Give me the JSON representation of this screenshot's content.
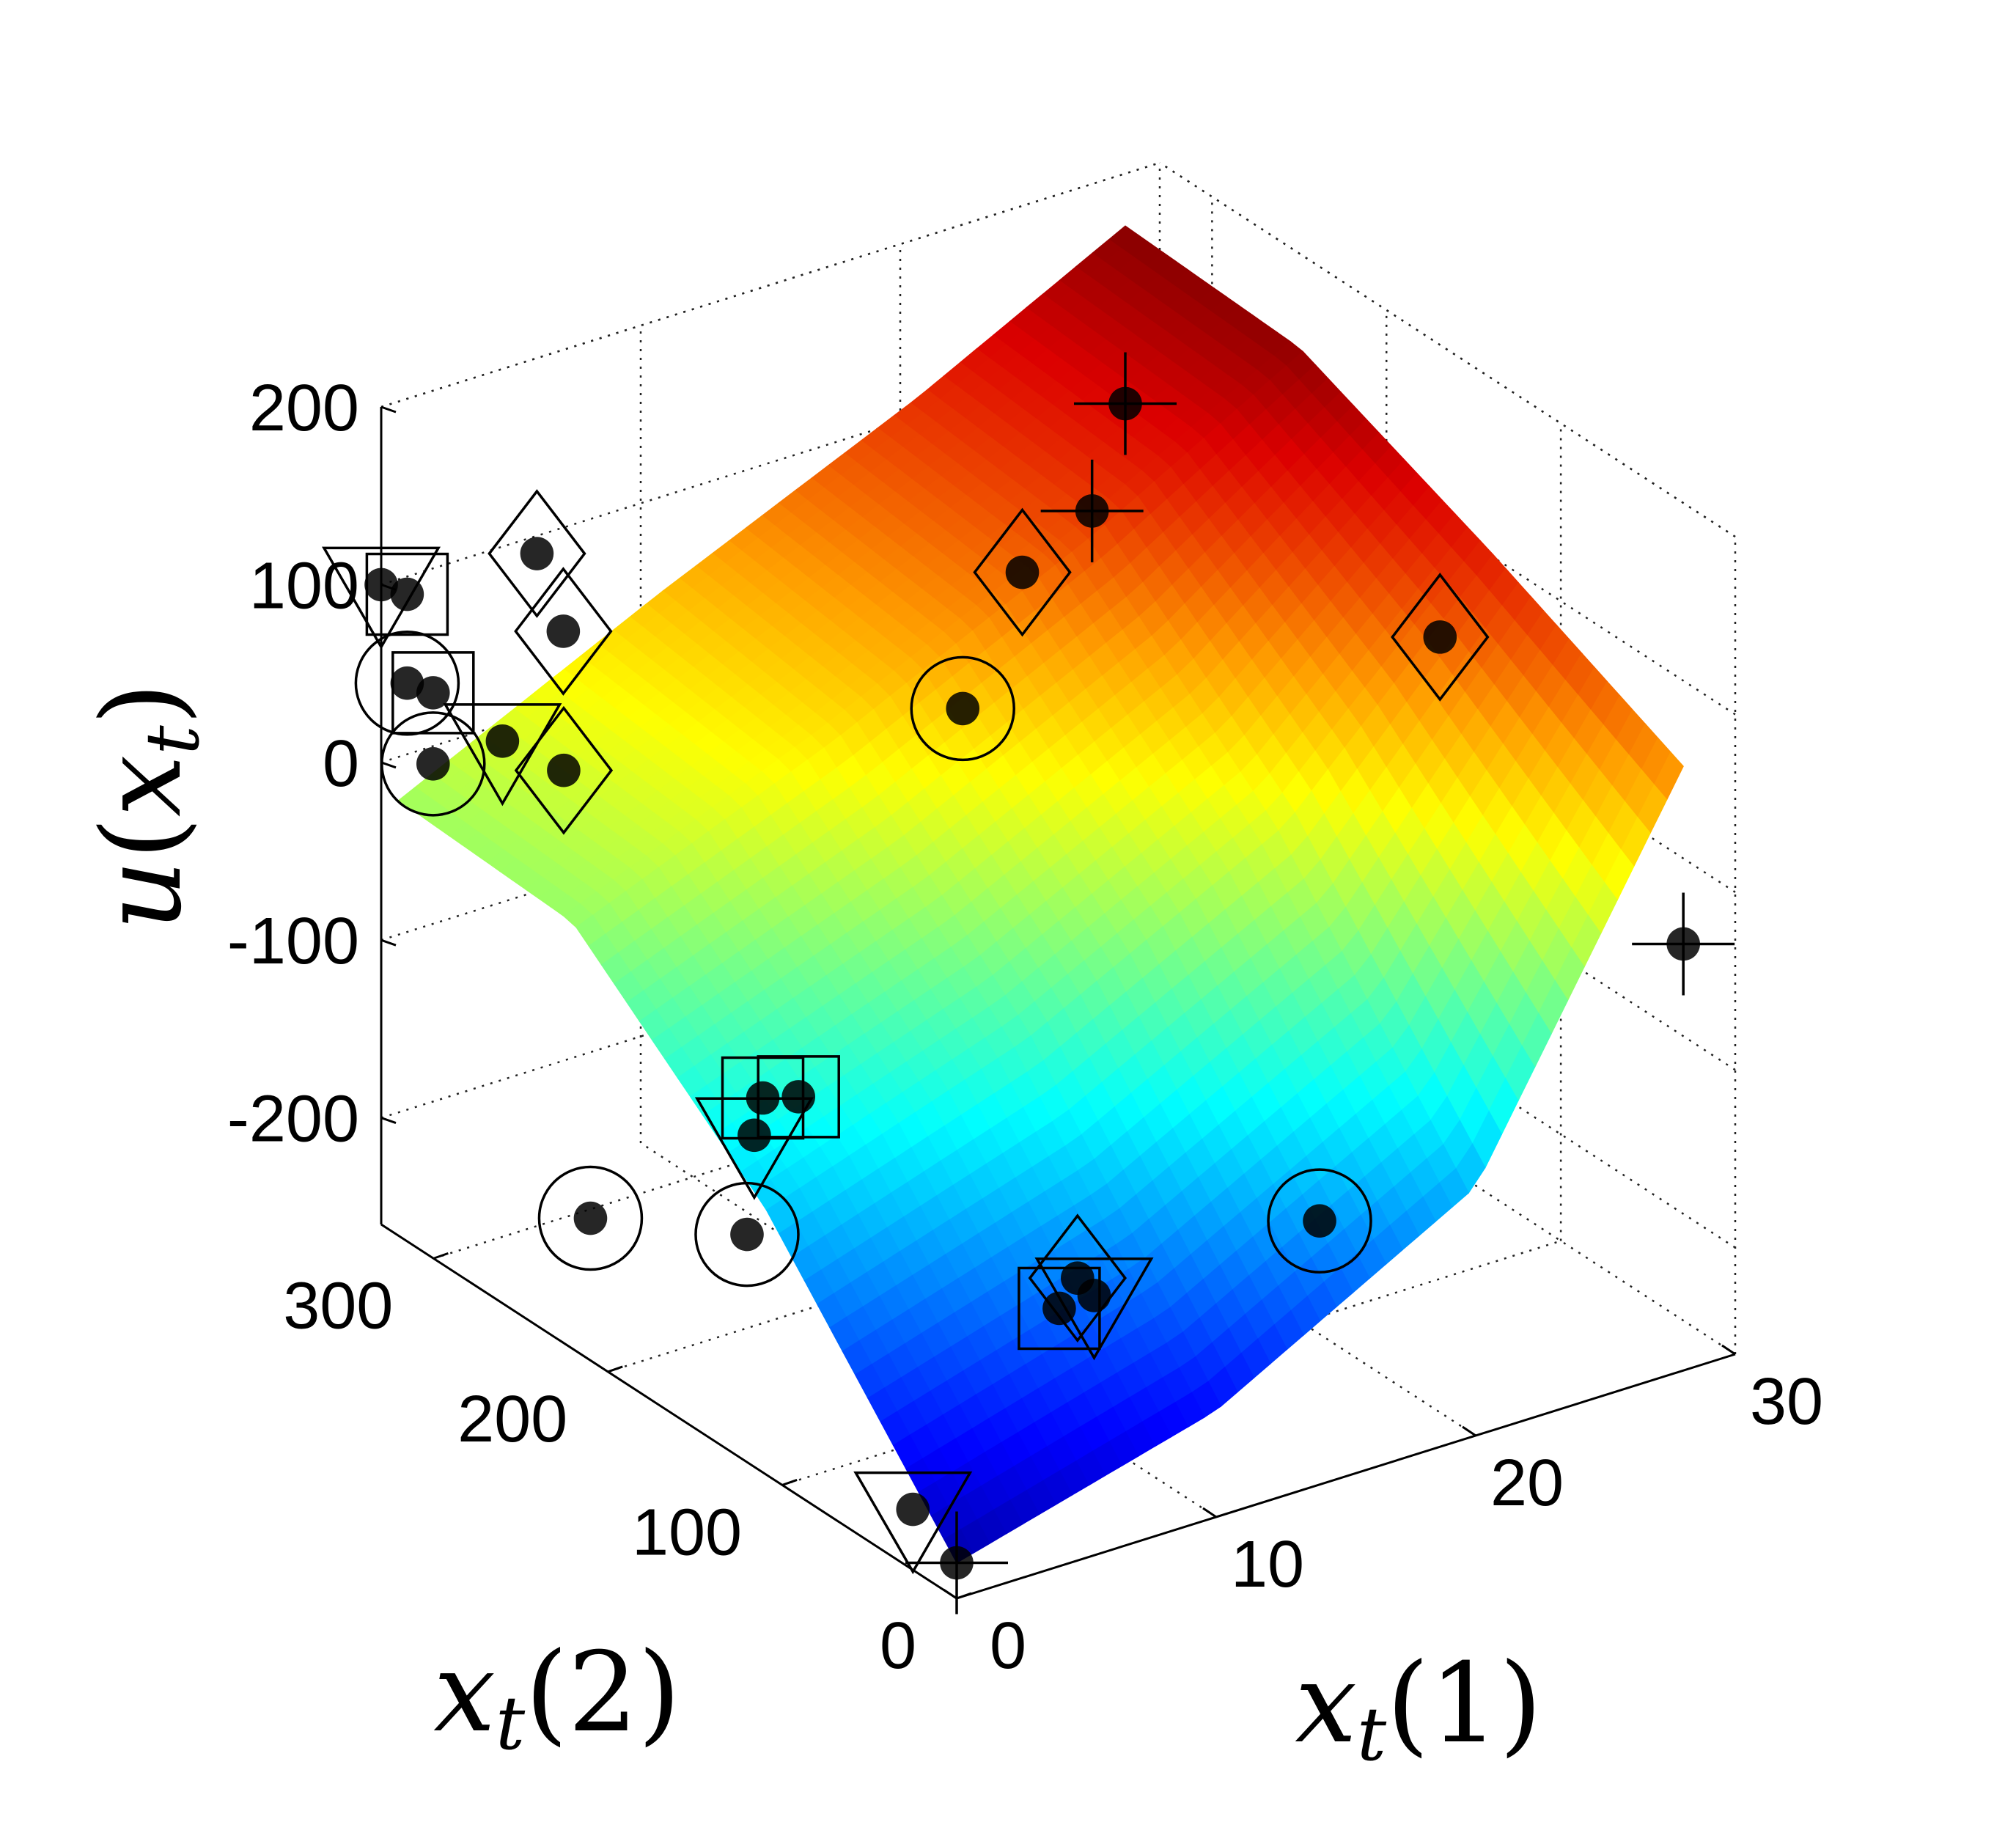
{
  "chart_data": {
    "type": "surface3d",
    "title": "",
    "xlabel": {
      "main": "x",
      "sub": "t",
      "arg": "(1)"
    },
    "ylabel": {
      "main": "x",
      "sub": "t",
      "arg": "(2)"
    },
    "zlabel": {
      "main": "u",
      "arg_open": "(",
      "arg_main": "x",
      "arg_sub": "t",
      "arg_close": ")"
    },
    "x_ticks": [
      "0",
      "10",
      "20",
      "30"
    ],
    "y_ticks": [
      "0",
      "100",
      "200",
      "300"
    ],
    "z_ticks": [
      "-200",
      "-100",
      "0",
      "100",
      "200"
    ],
    "xlim": [
      0,
      30
    ],
    "ylim": [
      0,
      330
    ],
    "zlim": [
      -260,
      200
    ],
    "grid": true,
    "colormap": "jet",
    "surface": {
      "x": [
        0,
        10,
        20,
        28
      ],
      "y": [
        0,
        110,
        220,
        320
      ],
      "z": [
        [
          -240,
          -200,
          -120,
          80
        ],
        [
          -110,
          -60,
          15,
          130
        ],
        [
          -20,
          40,
          110,
          175
        ],
        [
          -15,
          55,
          120,
          180
        ]
      ]
    },
    "marker_groups": [
      {
        "marker": "plus",
        "points": [
          [
            28,
            320,
            80
          ],
          [
            28,
            0,
            -20
          ],
          [
            20,
            220,
            120
          ],
          [
            0,
            0,
            -240
          ]
        ]
      },
      {
        "marker": "diamond",
        "points": [
          [
            5,
            300,
            70
          ],
          [
            24,
            80,
            120
          ],
          [
            6,
            330,
            90
          ],
          [
            20,
            260,
            60
          ],
          [
            6,
            20,
            -120
          ],
          [
            3,
            270,
            20
          ]
        ]
      },
      {
        "marker": "circle",
        "points": [
          [
            1,
            330,
            40
          ],
          [
            13,
            190,
            60
          ],
          [
            16,
            30,
            -140
          ],
          [
            0,
            210,
            -180
          ],
          [
            2,
            150,
            -160
          ],
          [
            2,
            330,
            -10
          ]
        ]
      },
      {
        "marker": "square",
        "points": [
          [
            1,
            330,
            90
          ],
          [
            6,
            180,
            -120
          ],
          [
            10,
            90,
            -200
          ],
          [
            10,
            260,
            -190
          ],
          [
            2,
            330,
            30
          ]
        ]
      },
      {
        "marker": "triangle-down",
        "points": [
          [
            0,
            330,
            100
          ],
          [
            4,
            320,
            0
          ],
          [
            10,
            70,
            -180
          ],
          [
            9,
            250,
            -200
          ],
          [
            1,
            40,
            -240
          ]
        ]
      }
    ]
  }
}
